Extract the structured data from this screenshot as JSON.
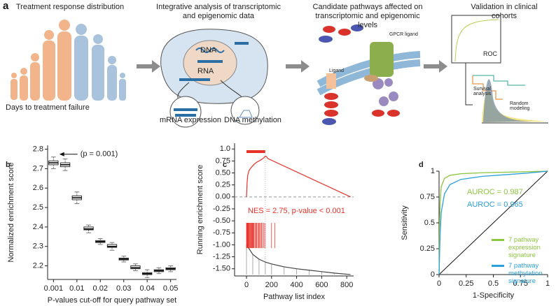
{
  "panel_a": {
    "label": "a",
    "steps": [
      {
        "title": "Treatment response distribution",
        "caption": "Days to treatment failure"
      },
      {
        "title": "Integrative analysis of transcriptomic and epigenomic data",
        "labels": [
          "DNA",
          "RNA",
          "mRNA expression",
          "DNA methylation"
        ]
      },
      {
        "title": "Candidate pathways affected on transcriptomic and epigenomic levels",
        "labels": [
          "GPCR ligand",
          "Ligand"
        ]
      },
      {
        "title": "Validation in clinical cohorts",
        "labels": [
          "ROC",
          "Survival analysis",
          "Random modeling"
        ]
      }
    ]
  },
  "chart_data": [
    {
      "label": "b",
      "type": "box",
      "ylabel": "Normalized enrichment score",
      "xlabel": "P-values cut-off for query pathway set",
      "annotation": "(p = 0.001)",
      "color": "#333333",
      "categories": [
        "0.001",
        null,
        "0.01",
        null,
        "0.02",
        null,
        "0.03",
        null,
        "0.04",
        null,
        "0.05"
      ],
      "medians": [
        2.73,
        2.72,
        2.55,
        2.39,
        2.325,
        2.3,
        2.235,
        2.19,
        2.16,
        2.175,
        2.185
      ],
      "q1": [
        2.72,
        2.71,
        2.54,
        2.385,
        2.32,
        2.295,
        2.23,
        2.185,
        2.155,
        2.17,
        2.18
      ],
      "q3": [
        2.74,
        2.73,
        2.56,
        2.4,
        2.33,
        2.31,
        2.24,
        2.2,
        2.165,
        2.18,
        2.19
      ],
      "mins": [
        2.7,
        2.69,
        2.52,
        2.37,
        2.31,
        2.28,
        2.22,
        2.175,
        2.14,
        2.16,
        2.17
      ],
      "maxs": [
        2.76,
        2.75,
        2.58,
        2.41,
        2.34,
        2.32,
        2.25,
        2.21,
        2.18,
        2.19,
        2.2
      ],
      "ylim": [
        2.13,
        2.82
      ],
      "yticks": [
        2.2,
        2.3,
        2.4,
        2.5,
        2.6,
        2.7,
        2.8
      ]
    },
    {
      "label": "c",
      "type": "gsea",
      "ylabel": "Running enrichment score",
      "xlabel": "Pathway list index",
      "annotation": "NES = 2.75, p-value < 0.001",
      "color": "#e8312a",
      "x": [
        0,
        5,
        10,
        20,
        40,
        60,
        80,
        100,
        120,
        140,
        150,
        160,
        170,
        830
      ],
      "values": [
        0,
        0.3,
        0.45,
        0.55,
        0.62,
        0.68,
        0.72,
        0.75,
        0.78,
        0.82,
        0.85,
        0.84,
        0.8,
        0
      ],
      "hits": [
        0,
        3,
        6,
        9,
        12,
        15,
        20,
        25,
        30,
        35,
        40,
        45,
        50,
        55,
        60,
        68,
        75,
        82,
        90,
        98,
        105,
        112,
        120,
        130,
        140,
        150,
        200,
        225
      ],
      "leading_edge": [
        0,
        150
      ],
      "metric_x": [
        0,
        50,
        100,
        150,
        200,
        300,
        400,
        500,
        600,
        700,
        830
      ],
      "metric": [
        -1.0,
        -1.2,
        -1.3,
        -1.36,
        -1.4,
        -1.46,
        -1.5,
        -1.53,
        -1.56,
        -1.59,
        -1.62
      ],
      "xlim": [
        -95,
        855
      ],
      "ylim": [
        -1.65,
        1.12
      ],
      "xticks": [
        0,
        200,
        400,
        600,
        800
      ],
      "yticks": [
        {
          "value": 1,
          "label": "1.0"
        },
        0.75,
        {
          "value": 0.5,
          "label": "0.50"
        },
        0.25,
        {
          "value": 0,
          "label": "0.00"
        },
        -0.25,
        {
          "value": -0.5,
          "label": "-0.50"
        },
        -0.75,
        {
          "value": -1,
          "label": "-1.00"
        },
        -1.25,
        {
          "value": -1.5,
          "label": "-1.50"
        }
      ]
    },
    {
      "label": "d",
      "type": "roc",
      "ylabel": "Sensitivity",
      "xlabel": "1-Specificity",
      "series": [
        {
          "name": "7 pathway expression signature",
          "color": "#8dc63f",
          "annotation": "AUROC = 0.987",
          "x": [
            0,
            0.005,
            0.01,
            0.02,
            0.05,
            0.1,
            0.2,
            0.4,
            0.7,
            1
          ],
          "values": [
            0,
            0.5,
            0.7,
            0.85,
            0.93,
            0.96,
            0.975,
            0.985,
            0.992,
            1
          ]
        },
        {
          "name": "7 pathway methylation signature",
          "color": "#2b9fd9",
          "annotation": "AUROC = 0.965",
          "x": [
            0,
            0.01,
            0.02,
            0.05,
            0.1,
            0.2,
            0.4,
            0.6,
            0.8,
            1
          ],
          "values": [
            0,
            0.4,
            0.6,
            0.78,
            0.87,
            0.92,
            0.95,
            0.965,
            0.98,
            1
          ]
        }
      ],
      "xlim": [
        0,
        1
      ],
      "ylim": [
        0,
        1
      ],
      "xticks": [
        0,
        0.25,
        0.5,
        0.75,
        1
      ],
      "yticks": [
        0,
        0.25,
        0.5,
        0.75,
        1
      ]
    }
  ]
}
